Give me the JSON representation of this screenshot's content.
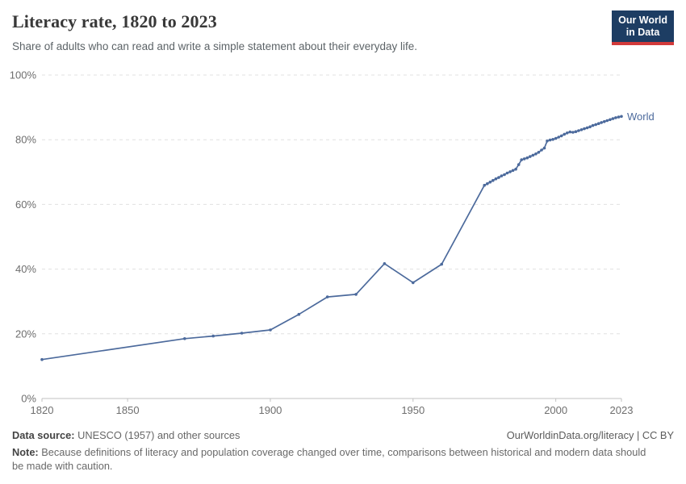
{
  "header": {
    "title": "Literacy rate, 1820 to 2023",
    "subtitle": "Share of adults who can read and write a simple statement about their everyday life."
  },
  "logo": {
    "line1": "Our World",
    "line2": "in Data",
    "bg_color": "#1d3d63",
    "accent_color": "#d23a3a"
  },
  "chart_data": {
    "type": "line",
    "title": "Literacy rate, 1820 to 2023",
    "xlabel": "",
    "ylabel": "",
    "xlim": [
      1820,
      2023
    ],
    "ylim": [
      0,
      100
    ],
    "grid": "horizontal-dashed",
    "legend_position": "end-of-line",
    "x_ticks": [
      {
        "v": 1820,
        "label": "1820"
      },
      {
        "v": 1850,
        "label": "1850"
      },
      {
        "v": 1900,
        "label": "1900"
      },
      {
        "v": 1950,
        "label": "1950"
      },
      {
        "v": 2000,
        "label": "2000"
      },
      {
        "v": 2023,
        "label": "2023"
      }
    ],
    "y_ticks": [
      {
        "v": 0,
        "label": "0%"
      },
      {
        "v": 20,
        "label": "20%"
      },
      {
        "v": 40,
        "label": "40%"
      },
      {
        "v": 60,
        "label": "60%"
      },
      {
        "v": 80,
        "label": "80%"
      },
      {
        "v": 100,
        "label": "100%"
      }
    ],
    "series": [
      {
        "name": "World",
        "color": "#4c6a9c",
        "points": [
          [
            1820,
            12.05
          ],
          [
            1870,
            18.5
          ],
          [
            1880,
            19.3
          ],
          [
            1890,
            20.2
          ],
          [
            1900,
            21.2
          ],
          [
            1910,
            26.0
          ],
          [
            1920,
            31.4
          ],
          [
            1930,
            32.2
          ],
          [
            1940,
            41.7
          ],
          [
            1950,
            35.8
          ],
          [
            1960,
            41.5
          ],
          [
            1975,
            65.9
          ],
          [
            1976,
            66.4
          ],
          [
            1977,
            66.9
          ],
          [
            1978,
            67.4
          ],
          [
            1979,
            67.9
          ],
          [
            1980,
            68.3
          ],
          [
            1981,
            68.8
          ],
          [
            1982,
            69.2
          ],
          [
            1983,
            69.7
          ],
          [
            1984,
            70.1
          ],
          [
            1985,
            70.5
          ],
          [
            1986,
            70.9
          ],
          [
            1987,
            72.3
          ],
          [
            1988,
            73.8
          ],
          [
            1989,
            74.1
          ],
          [
            1990,
            74.4
          ],
          [
            1991,
            74.8
          ],
          [
            1992,
            75.2
          ],
          [
            1993,
            75.6
          ],
          [
            1994,
            76.1
          ],
          [
            1995,
            76.8
          ],
          [
            1996,
            77.4
          ],
          [
            1997,
            79.6
          ],
          [
            1998,
            79.9
          ],
          [
            1999,
            80.1
          ],
          [
            2000,
            80.4
          ],
          [
            2001,
            80.8
          ],
          [
            2002,
            81.2
          ],
          [
            2003,
            81.7
          ],
          [
            2004,
            82.1
          ],
          [
            2005,
            82.4
          ],
          [
            2006,
            82.3
          ],
          [
            2007,
            82.5
          ],
          [
            2008,
            82.8
          ],
          [
            2009,
            83.1
          ],
          [
            2010,
            83.4
          ],
          [
            2011,
            83.7
          ],
          [
            2012,
            84.0
          ],
          [
            2013,
            84.4
          ],
          [
            2014,
            84.7
          ],
          [
            2015,
            85.0
          ],
          [
            2016,
            85.3
          ],
          [
            2017,
            85.6
          ],
          [
            2018,
            85.9
          ],
          [
            2019,
            86.2
          ],
          [
            2020,
            86.5
          ],
          [
            2021,
            86.8
          ],
          [
            2022,
            87.0
          ],
          [
            2023,
            87.2
          ]
        ]
      }
    ]
  },
  "footer": {
    "source_label": "Data source:",
    "source_text": " UNESCO (1957) and other sources",
    "link": "OurWorldinData.org/literacy | CC BY",
    "note_label": "Note:",
    "note_text": " Because definitions of literacy and population coverage changed over time, comparisons between historical and modern data should be made with caution."
  }
}
